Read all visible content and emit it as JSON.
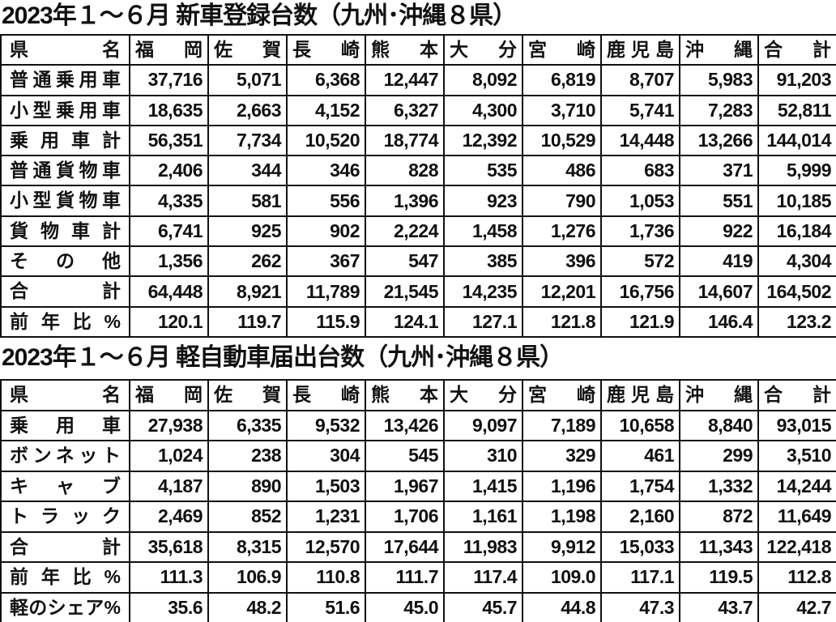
{
  "tables": [
    {
      "title": "2023年１～６月 新車登録台数（九州･沖縄８県）",
      "header": [
        "県 名",
        "福 岡",
        "佐 賀",
        "長 崎",
        "熊 本",
        "大 分",
        "宮 崎",
        "鹿児島",
        "沖 縄",
        "合 計"
      ],
      "rows": [
        [
          "普通乗用車",
          "37,716",
          "5,071",
          "6,368",
          "12,447",
          "8,092",
          "6,819",
          "8,707",
          "5,983",
          "91,203"
        ],
        [
          "小型乗用車",
          "18,635",
          "2,663",
          "4,152",
          "6,327",
          "4,300",
          "3,710",
          "5,741",
          "7,283",
          "52,811"
        ],
        [
          "乗 用 車 計",
          "56,351",
          "7,734",
          "10,520",
          "18,774",
          "12,392",
          "10,529",
          "14,448",
          "13,266",
          "144,014"
        ],
        [
          "普通貨物車",
          "2,406",
          "344",
          "346",
          "828",
          "535",
          "486",
          "683",
          "371",
          "5,999"
        ],
        [
          "小型貨物車",
          "4,335",
          "581",
          "556",
          "1,396",
          "923",
          "790",
          "1,053",
          "551",
          "10,185"
        ],
        [
          "貨 物 車 計",
          "6,741",
          "925",
          "902",
          "2,224",
          "1,458",
          "1,276",
          "1,736",
          "922",
          "16,184"
        ],
        [
          "そ の 他",
          "1,356",
          "262",
          "367",
          "547",
          "385",
          "396",
          "572",
          "419",
          "4,304"
        ],
        [
          "合 計",
          "64,448",
          "8,921",
          "11,789",
          "21,545",
          "14,235",
          "12,201",
          "16,756",
          "14,607",
          "164,502"
        ],
        [
          "前 年 比 %",
          "120.1",
          "119.7",
          "115.9",
          "124.1",
          "127.1",
          "121.8",
          "121.9",
          "146.4",
          "123.2"
        ]
      ]
    },
    {
      "title": "2023年１～６月 軽自動車届出台数（九州･沖縄８県）",
      "header": [
        "県 名",
        "福 岡",
        "佐 賀",
        "長 崎",
        "熊 本",
        "大 分",
        "宮 崎",
        "鹿児島",
        "沖 縄",
        "合 計"
      ],
      "rows": [
        [
          "乗 用 車",
          "27,938",
          "6,335",
          "9,532",
          "13,426",
          "9,097",
          "7,189",
          "10,658",
          "8,840",
          "93,015"
        ],
        [
          "ボンネット",
          "1,024",
          "238",
          "304",
          "545",
          "310",
          "329",
          "461",
          "299",
          "3,510"
        ],
        [
          "キ ャ ブ",
          "4,187",
          "890",
          "1,503",
          "1,967",
          "1,415",
          "1,196",
          "1,754",
          "1,332",
          "14,244"
        ],
        [
          "ト ラ ッ ク",
          "2,469",
          "852",
          "1,231",
          "1,706",
          "1,161",
          "1,198",
          "2,160",
          "872",
          "11,649"
        ],
        [
          "合 計",
          "35,618",
          "8,315",
          "12,570",
          "17,644",
          "11,983",
          "9,912",
          "15,033",
          "11,343",
          "122,418"
        ],
        [
          "前 年 比 %",
          "111.3",
          "106.9",
          "110.8",
          "111.7",
          "117.4",
          "109.0",
          "117.1",
          "119.5",
          "112.8"
        ],
        [
          "軽のシェア%",
          "35.6",
          "48.2",
          "51.6",
          "45.0",
          "45.7",
          "44.8",
          "47.3",
          "43.7",
          "42.7"
        ]
      ]
    }
  ]
}
